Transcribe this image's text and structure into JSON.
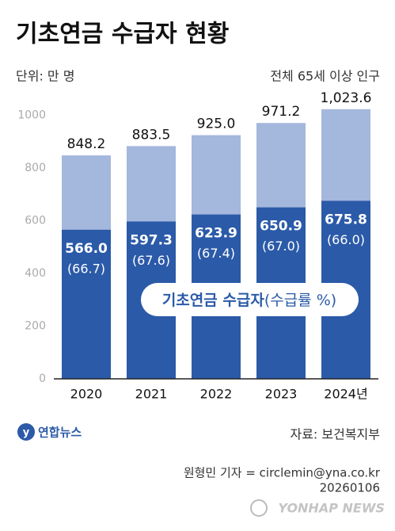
{
  "chart_data": {
    "type": "bar",
    "title": "기초연금 수급자 현황",
    "unit": "단위: 만 명",
    "categories": [
      "2020",
      "2021",
      "2022",
      "2023",
      "2024년"
    ],
    "series": [
      {
        "name": "전체 65세 이상 인구",
        "color": "#a4b7dc",
        "values": [
          848.2,
          883.5,
          925.0,
          971.2,
          1023.6
        ],
        "value_labels": [
          "848.2",
          "883.5",
          "925.0",
          "971.2",
          "1,023.6"
        ]
      },
      {
        "name": "기초연금 수급자",
        "color": "#2b5aa8",
        "values": [
          566.0,
          597.3,
          623.9,
          650.9,
          675.8
        ],
        "value_labels": [
          "566.0",
          "597.3",
          "623.9",
          "650.9",
          "675.8"
        ]
      }
    ],
    "rate": {
      "name": "(수급률 %)",
      "values": [
        66.7,
        67.6,
        67.4,
        67.0,
        66.0
      ],
      "value_labels": [
        "(66.7)",
        "(67.6)",
        "(67.4)",
        "(67.0)",
        "(66.0)"
      ]
    },
    "ylim": [
      0,
      1050
    ],
    "yticks": [
      0,
      200,
      400,
      600,
      800,
      1000
    ],
    "grid": false,
    "logo": "연합뉴스",
    "source": "자료: 보건복지부",
    "credit": "원형민 기자 = circlemin@yna.co.kr",
    "date": "20260106",
    "watermark": "YONHAP NEWS"
  }
}
